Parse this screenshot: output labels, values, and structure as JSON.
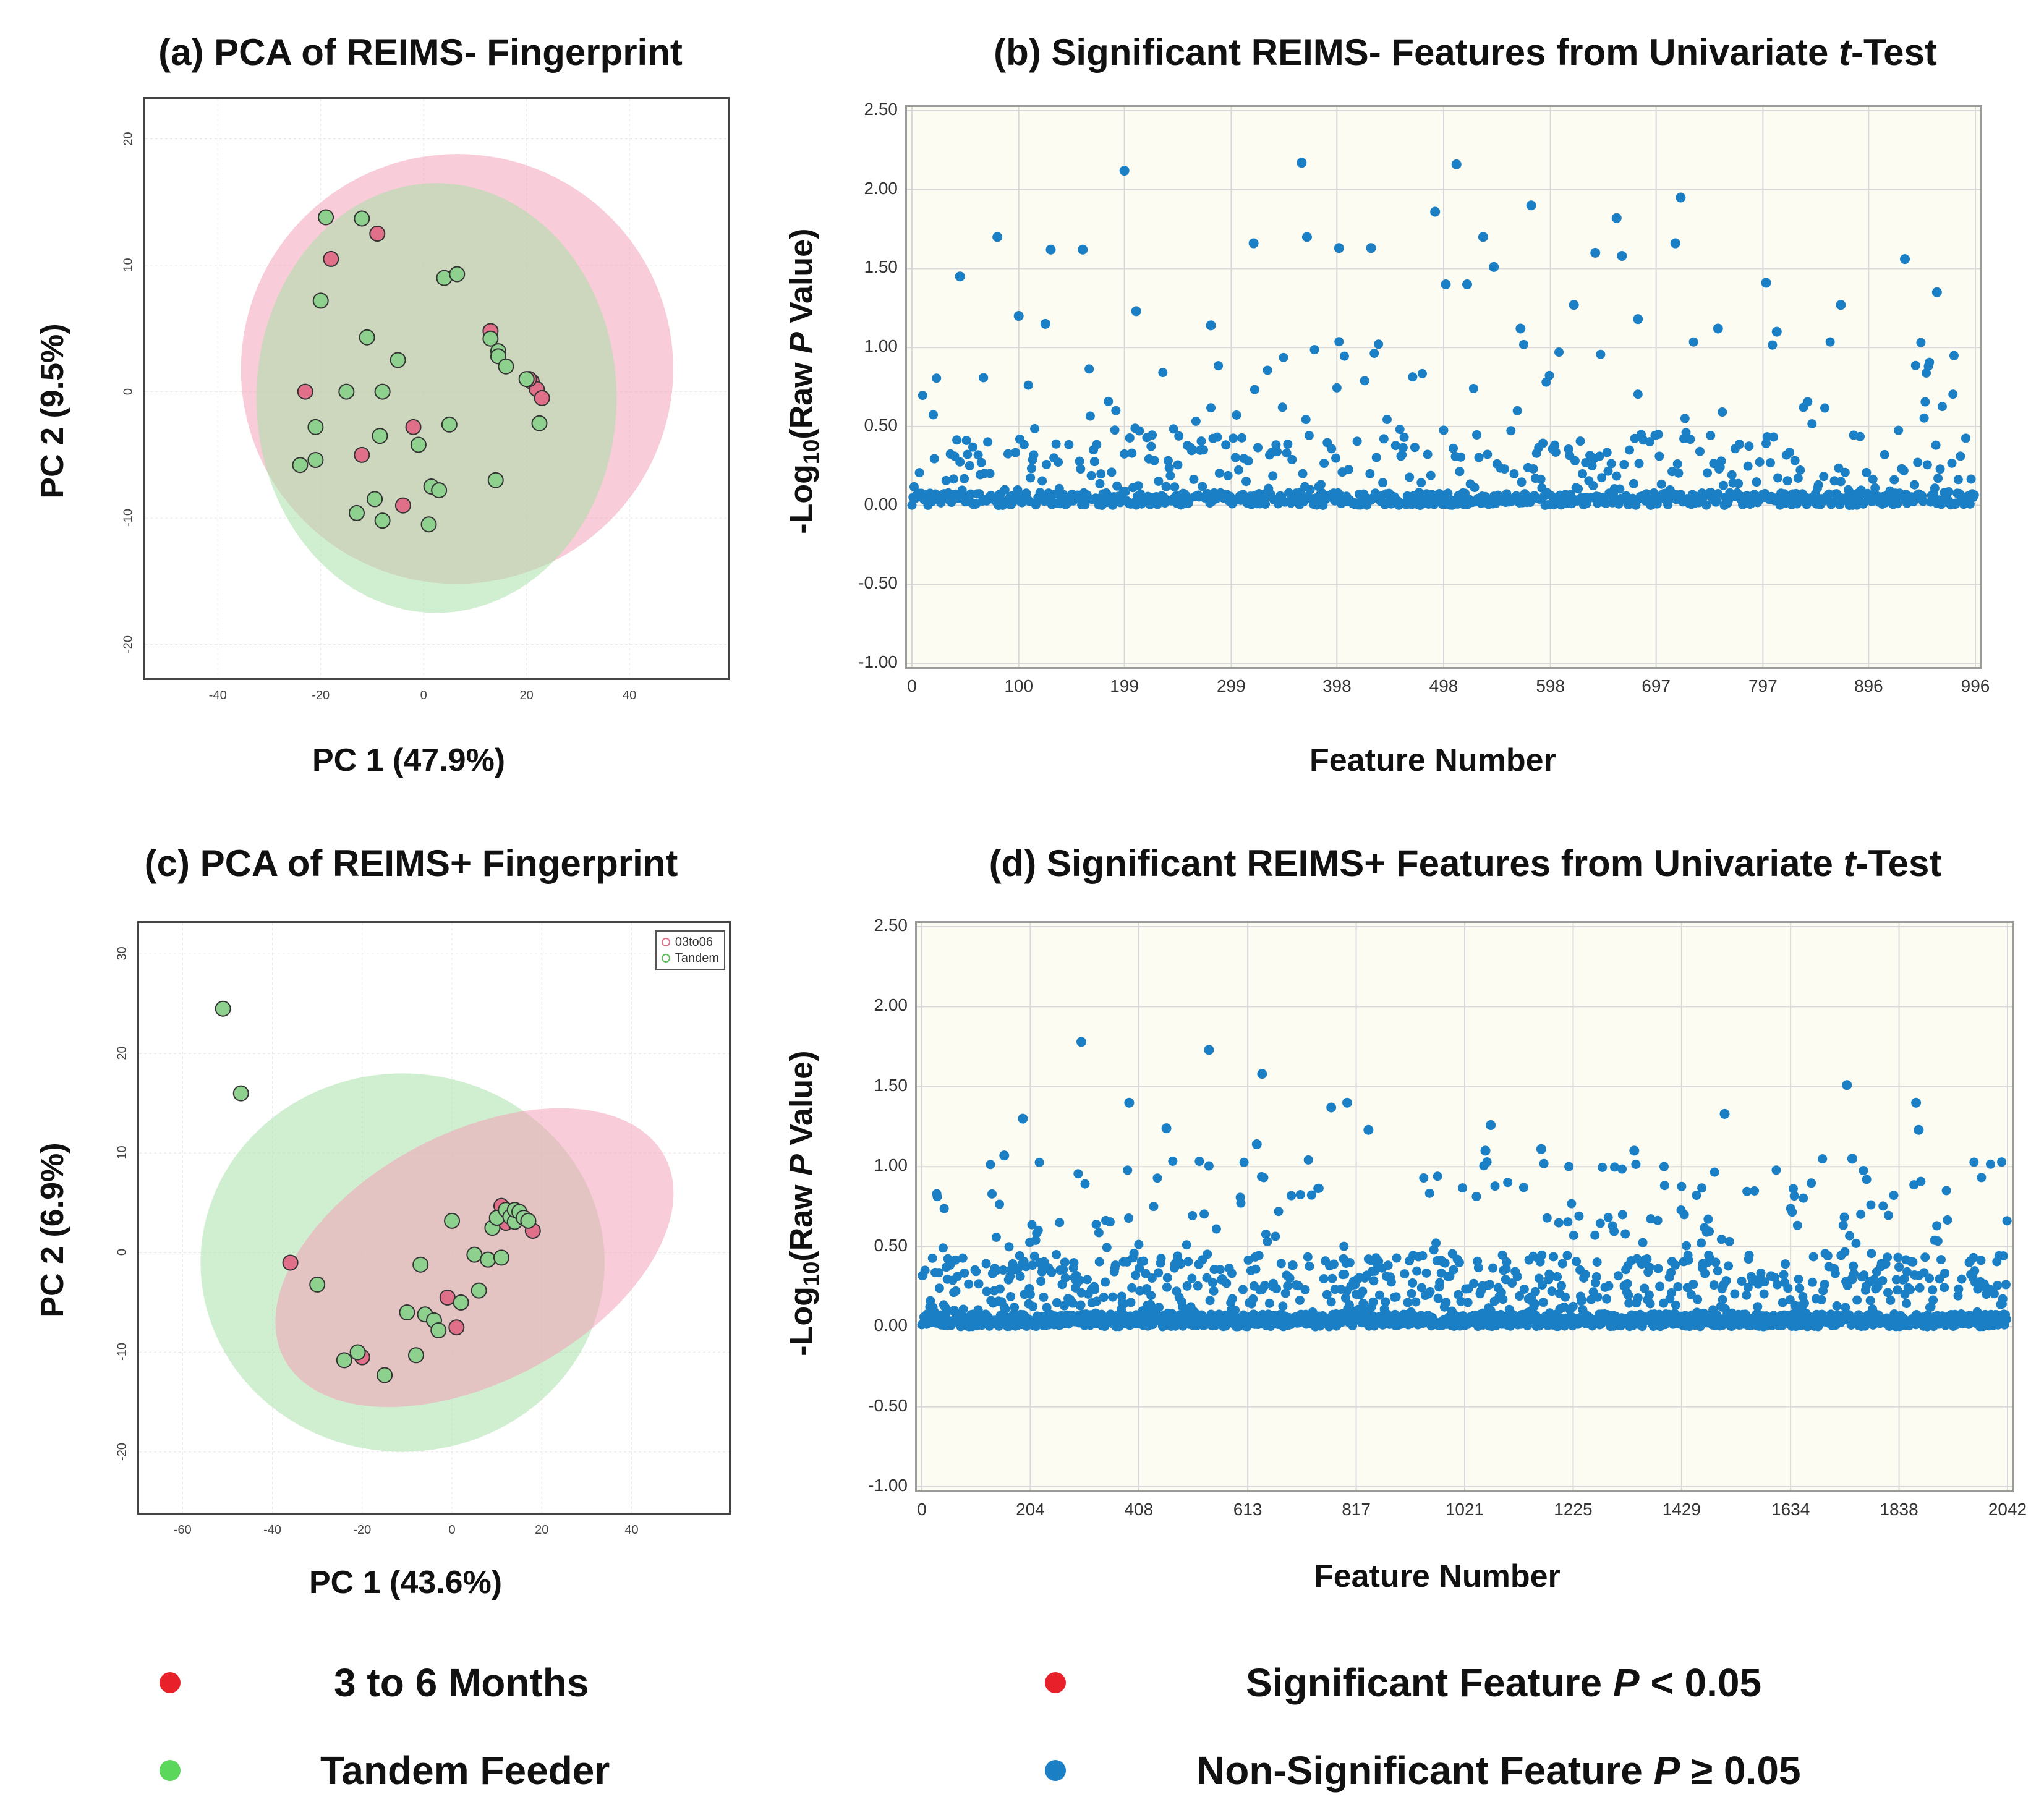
{
  "panels": {
    "a": {
      "title": "(a) PCA of REIMS- Fingerprint",
      "xlabel": "PC 1 (47.9%)",
      "ylabel": "PC 2 (9.5%)",
      "xticks": [
        "-40",
        "-20",
        "0",
        "20",
        "40"
      ],
      "yticks": [
        "20",
        "10",
        "0",
        "-10",
        "-20"
      ]
    },
    "b": {
      "title_pre": "(b) Significant REIMS- Features from Univariate ",
      "title_it": "t",
      "title_post": "-Test",
      "xlabel": "Feature Number",
      "ylabel_pre": "-Log",
      "ylabel_sub": "10",
      "ylabel_mid": "(Raw ",
      "ylabel_it": "P",
      "ylabel_post": " Value)",
      "xticks": [
        "0",
        "100",
        "199",
        "299",
        "398",
        "498",
        "598",
        "697",
        "797",
        "896",
        "996"
      ],
      "yticks": [
        "2.50",
        "2.00",
        "1.50",
        "1.00",
        "0.50",
        "0.00",
        "-0.50",
        "-1.00"
      ]
    },
    "c": {
      "title": "(c) PCA of REIMS+ Fingerprint",
      "xlabel": "PC 1 (43.6%)",
      "ylabel": "PC 2 (6.9%)",
      "xticks": [
        "-60",
        "-40",
        "-20",
        "0",
        "20",
        "40"
      ],
      "yticks": [
        "30",
        "20",
        "10",
        "0",
        "-10",
        "-20"
      ],
      "legend": [
        "03to06",
        "Tandem"
      ]
    },
    "d": {
      "title_pre": "(d) Significant REIMS+ Features from Univariate ",
      "title_it": "t",
      "title_post": "-Test",
      "xlabel": "Feature Number",
      "ylabel_pre": "-Log",
      "ylabel_sub": "10",
      "ylabel_mid": "(Raw ",
      "ylabel_it": "P",
      "ylabel_post": " Value)",
      "xticks": [
        "0",
        "204",
        "408",
        "613",
        "817",
        "1021",
        "1225",
        "1429",
        "1634",
        "1838",
        "2042"
      ],
      "yticks": [
        "2.50",
        "2.00",
        "1.50",
        "1.00",
        "0.50",
        "0.00",
        "-0.50",
        "-1.00"
      ]
    }
  },
  "legend": {
    "group1": "3 to 6 Months",
    "group2": "Tandem Feeder",
    "sig_pre": "Significant Feature ",
    "sig_it": "P",
    "sig_post": " < 0.05",
    "nonsig_pre": "Non-Significant Feature ",
    "nonsig_it": "P",
    "nonsig_post": " ≥ 0.05"
  },
  "colors": {
    "red": "#e8202a",
    "green": "#5bd85b",
    "blue": "#1a7fc4",
    "pink_ellipse": "#f2a3b8",
    "green_ellipse": "#a9e0a9",
    "pink_pt": "#e0708a",
    "green_pt": "#8ed08e"
  },
  "chart_data": [
    {
      "type": "scatter",
      "id": "a",
      "title": "(a) PCA of REIMS- Fingerprint",
      "xlabel": "PC 1 (47.9%)",
      "ylabel": "PC 2 (9.5%)",
      "xlim": [
        -50,
        55
      ],
      "ylim": [
        -21,
        21.5
      ],
      "ellipses": [
        {
          "group": "03to06",
          "cx": 6.5,
          "cy": 1.8,
          "rx": 42,
          "ry": 17,
          "angle": -8
        },
        {
          "group": "Tandem",
          "cx": 2.5,
          "cy": -0.5,
          "rx": 35,
          "ry": 17,
          "angle": 0
        }
      ],
      "series": [
        {
          "name": "03to06",
          "points": [
            [
              -18,
              10.5
            ],
            [
              -9,
              12.5
            ],
            [
              -23,
              0
            ],
            [
              -12,
              -5
            ],
            [
              -2,
              -2.8
            ],
            [
              -4,
              -9
            ],
            [
              13,
              4.8
            ],
            [
              21,
              0.8
            ],
            [
              22,
              0.2
            ],
            [
              23,
              -0.5
            ],
            [
              20.5,
              1
            ]
          ]
        },
        {
          "name": "Tandem",
          "points": [
            [
              -19,
              13.8
            ],
            [
              -12,
              13.7
            ],
            [
              -20,
              7.2
            ],
            [
              -11,
              4.3
            ],
            [
              -5,
              2.5
            ],
            [
              -15,
              0
            ],
            [
              -8,
              0
            ],
            [
              -21,
              -2.8
            ],
            [
              -8.5,
              -3.5
            ],
            [
              -1,
              -4.2
            ],
            [
              5,
              -2.6
            ],
            [
              -24,
              -5.8
            ],
            [
              -21,
              -5.4
            ],
            [
              -13,
              -9.6
            ],
            [
              -9.5,
              -8.5
            ],
            [
              -8,
              -10.2
            ],
            [
              1.5,
              -7.5
            ],
            [
              3,
              -7.8
            ],
            [
              1,
              -10.5
            ],
            [
              14,
              -7
            ],
            [
              4,
              9
            ],
            [
              6.5,
              9.3
            ],
            [
              13,
              4.2
            ],
            [
              14.5,
              3.2
            ],
            [
              14.5,
              2.8
            ],
            [
              16,
              2
            ],
            [
              20,
              1
            ],
            [
              22.5,
              -2.5
            ]
          ]
        }
      ]
    },
    {
      "type": "scatter",
      "id": "b",
      "title": "(b) Significant REIMS- Features from Univariate t-Test",
      "xlabel": "Feature Number",
      "ylabel": "-Log10(Raw P Value)",
      "xlim": [
        0,
        996
      ],
      "ylim": [
        -1.0,
        2.5
      ],
      "n_features": 996,
      "highlighted_points": [
        [
          45,
          1.45
        ],
        [
          80,
          1.7
        ],
        [
          199,
          2.12
        ],
        [
          365,
          2.17
        ],
        [
          510,
          2.16
        ],
        [
          490,
          1.86
        ],
        [
          580,
          1.9
        ],
        [
          720,
          1.95
        ],
        [
          660,
          1.82
        ],
        [
          535,
          1.7
        ],
        [
          160,
          1.62
        ],
        [
          130,
          1.62
        ],
        [
          320,
          1.66
        ],
        [
          370,
          1.7
        ],
        [
          400,
          1.63
        ],
        [
          430,
          1.63
        ],
        [
          640,
          1.6
        ],
        [
          665,
          1.58
        ],
        [
          715,
          1.66
        ],
        [
          800,
          1.41
        ],
        [
          930,
          1.56
        ],
        [
          960,
          1.35
        ],
        [
          500,
          1.4
        ],
        [
          520,
          1.4
        ],
        [
          545,
          1.51
        ],
        [
          210,
          1.23
        ],
        [
          100,
          1.2
        ],
        [
          125,
          1.15
        ],
        [
          280,
          1.14
        ],
        [
          570,
          1.12
        ],
        [
          755,
          1.12
        ],
        [
          810,
          1.1
        ],
        [
          680,
          1.18
        ],
        [
          620,
          1.27
        ],
        [
          870,
          1.27
        ]
      ]
    },
    {
      "type": "scatter",
      "id": "c",
      "title": "(c) PCA of REIMS+ Fingerprint",
      "xlabel": "PC 1 (43.6%)",
      "ylabel": "PC 2 (6.9%)",
      "xlim": [
        -65,
        57
      ],
      "ylim": [
        -24,
        31
      ],
      "legend": [
        "03to06",
        "Tandem"
      ],
      "ellipses": [
        {
          "group": "Tandem",
          "cx": -11,
          "cy": -1,
          "rx": 45,
          "ry": 19,
          "angle": 0
        },
        {
          "group": "03to06",
          "cx": 5,
          "cy": -0.5,
          "rx": 48,
          "ry": 12.5,
          "angle": -28
        }
      ],
      "series": [
        {
          "name": "03to06",
          "points": [
            [
              -36,
              -1
            ],
            [
              -20,
              -10.5
            ],
            [
              -1,
              -4.5
            ],
            [
              1,
              -7.5
            ],
            [
              11,
              4.7
            ],
            [
              12,
              3
            ],
            [
              13,
              4
            ],
            [
              18,
              2.2
            ],
            [
              15,
              3.5
            ]
          ]
        },
        {
          "name": "Tandem",
          "points": [
            [
              -51,
              24.5
            ],
            [
              -47,
              16
            ],
            [
              -30,
              -3.2
            ],
            [
              -7,
              -1.2
            ],
            [
              0,
              3.2
            ],
            [
              5,
              -0.2
            ],
            [
              8,
              -0.7
            ],
            [
              11,
              -0.5
            ],
            [
              9,
              2.5
            ],
            [
              10,
              3.5
            ],
            [
              12,
              4.3
            ],
            [
              13,
              3.6
            ],
            [
              14,
              3.1
            ],
            [
              14,
              4.3
            ],
            [
              15,
              4.1
            ],
            [
              16,
              3.5
            ],
            [
              17,
              3.2
            ],
            [
              -10,
              -6
            ],
            [
              -6,
              -6.2
            ],
            [
              -4,
              -6.8
            ],
            [
              -3,
              -7.8
            ],
            [
              2,
              -5
            ],
            [
              6,
              -3.8
            ],
            [
              -21,
              -10
            ],
            [
              -24,
              -10.8
            ],
            [
              -15,
              -12.3
            ],
            [
              -8,
              -10.3
            ]
          ]
        }
      ]
    },
    {
      "type": "scatter",
      "id": "d",
      "title": "(d) Significant REIMS+ Features from Univariate t-Test",
      "xlabel": "Feature Number",
      "ylabel": "-Log10(Raw P Value)",
      "xlim": [
        0,
        2042
      ],
      "ylim": [
        -1.0,
        2.5
      ],
      "n_features": 2042,
      "highlighted_points": [
        [
          300,
          1.78
        ],
        [
          540,
          1.73
        ],
        [
          640,
          1.58
        ],
        [
          1740,
          1.51
        ],
        [
          390,
          1.4
        ],
        [
          770,
          1.37
        ],
        [
          800,
          1.4
        ],
        [
          1870,
          1.4
        ],
        [
          190,
          1.3
        ],
        [
          1510,
          1.33
        ],
        [
          460,
          1.24
        ],
        [
          840,
          1.23
        ],
        [
          1070,
          1.26
        ],
        [
          1875,
          1.23
        ],
        [
          155,
          1.07
        ],
        [
          630,
          1.14
        ],
        [
          1165,
          1.11
        ],
        [
          1060,
          1.1
        ],
        [
          1340,
          1.1
        ],
        [
          1750,
          1.05
        ]
      ]
    }
  ]
}
